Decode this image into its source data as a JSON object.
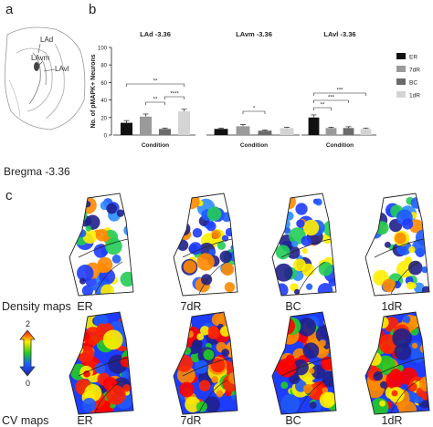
{
  "panel_a": {
    "letter": "a",
    "labels": [
      "LAd",
      "LAvm",
      "LAvl"
    ]
  },
  "panel_b": {
    "letter": "b"
  },
  "bregma_text": "Bregma -3.36",
  "panel_c": {
    "letter": "c",
    "conditions": [
      "ER",
      "7dR",
      "BC",
      "1dR"
    ],
    "row_labels": {
      "density": "Density maps",
      "cv": "CV maps"
    },
    "scale": {
      "max": "2",
      "min": "0"
    }
  },
  "chart_data": [
    {
      "type": "bar",
      "title": "LAd -3.36",
      "xlabel": "Condition",
      "ylabel": "No. of pMAPK+ Neurons",
      "ylim": [
        0,
        100
      ],
      "yticks": [
        0,
        20,
        40,
        60,
        80,
        100
      ],
      "categories": [
        "ER",
        "7dR",
        "BC",
        "1dR"
      ],
      "values": [
        14,
        21,
        7,
        27
      ],
      "errors": [
        2.5,
        3,
        1,
        2.5
      ],
      "significance": [
        {
          "from": "ER",
          "to": "1dR",
          "label": "**"
        },
        {
          "from": "7dR",
          "to": "BC",
          "label": "**"
        },
        {
          "from": "BC",
          "to": "1dR",
          "label": "****"
        }
      ]
    },
    {
      "type": "bar",
      "title": "LAvm -3.36",
      "xlabel": "Condition",
      "categories": [
        "ER",
        "7dR",
        "BC",
        "1dR"
      ],
      "values": [
        7,
        10,
        5,
        8
      ],
      "errors": [
        1,
        2,
        0.8,
        1
      ],
      "significance": [
        {
          "from": "7dR",
          "to": "BC",
          "label": "*"
        }
      ]
    },
    {
      "type": "bar",
      "title": "LAvl -3.36",
      "xlabel": "Condition",
      "categories": [
        "ER",
        "7dR",
        "BC",
        "1dR"
      ],
      "values": [
        20,
        8,
        8,
        7
      ],
      "errors": [
        3,
        1,
        1.5,
        1
      ],
      "significance": [
        {
          "from": "ER",
          "to": "1dR",
          "label": "***"
        },
        {
          "from": "ER",
          "to": "BC",
          "label": "***"
        },
        {
          "from": "ER",
          "to": "7dR",
          "label": "**"
        }
      ]
    }
  ],
  "legend": [
    {
      "label": "ER",
      "color": "#111111"
    },
    {
      "label": "7dR",
      "color": "#9a9a9a"
    },
    {
      "label": "BC",
      "color": "#6b6b6b"
    },
    {
      "label": "1dR",
      "color": "#d4d4d4"
    }
  ]
}
